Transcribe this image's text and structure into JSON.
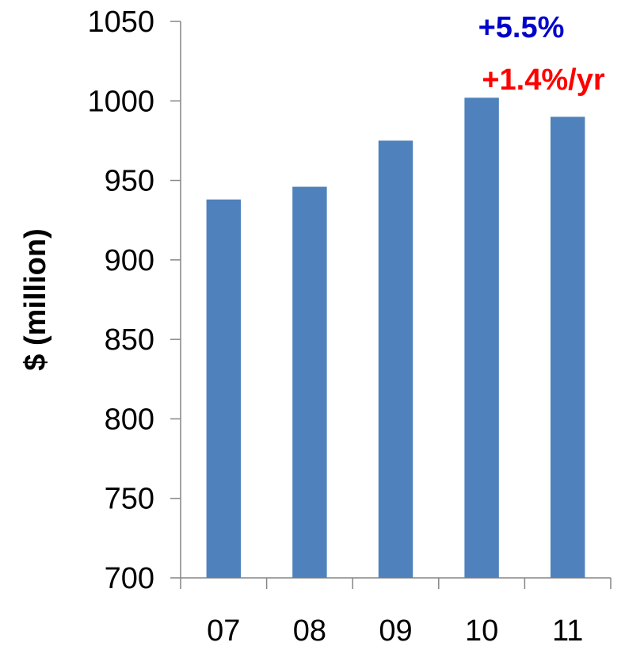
{
  "chart_data": {
    "type": "bar",
    "categories": [
      "07",
      "08",
      "09",
      "10",
      "11"
    ],
    "values": [
      938,
      946,
      975,
      1002,
      990
    ],
    "title": "",
    "xlabel": "",
    "ylabel": "$ (million)",
    "ylim": [
      700,
      1050
    ],
    "yticks": [
      700,
      750,
      800,
      850,
      900,
      950,
      1000,
      1050
    ],
    "grid": false,
    "legend": "none",
    "bar_color": "#4F81BD",
    "annotations": [
      {
        "text": "+5.5%",
        "color": "#0000CC"
      },
      {
        "text": "+1.4%/yr",
        "color": "#FF0000"
      }
    ]
  }
}
